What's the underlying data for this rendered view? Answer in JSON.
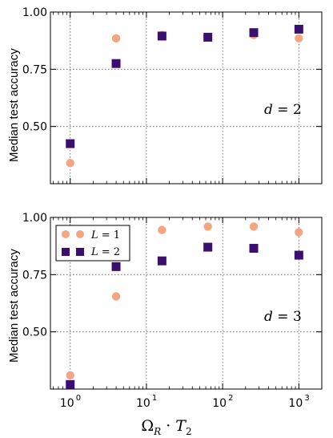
{
  "chart_data": [
    {
      "type": "scatter",
      "panel": "top",
      "annotation": "d = 2",
      "ylabel": "Median test accuracy",
      "xscale": "log",
      "xlim": [
        0.55,
        2000
      ],
      "ylim": [
        0.25,
        1.0
      ],
      "yticks": [
        "0.50",
        "0.75",
        "1.00"
      ],
      "xticks": [
        "10^0",
        "10^1",
        "10^2",
        "10^3"
      ],
      "grid": true,
      "x": [
        1,
        4,
        16,
        64,
        256,
        1000
      ],
      "series": [
        {
          "name": "L = 1",
          "marker": "circle",
          "color": "#f4a582",
          "values": [
            0.34,
            0.885,
            0.9,
            0.89,
            0.9,
            0.885
          ]
        },
        {
          "name": "L = 2",
          "marker": "square",
          "color": "#3b0f70",
          "values": [
            0.425,
            0.775,
            0.895,
            0.89,
            0.91,
            0.925
          ]
        }
      ]
    },
    {
      "type": "scatter",
      "panel": "bottom",
      "annotation": "d = 3",
      "ylabel": "Median test accuracy",
      "xlabel": "Ω_R · T_2",
      "xscale": "log",
      "xlim": [
        0.55,
        2000
      ],
      "ylim": [
        0.25,
        1.0
      ],
      "yticks": [
        "0.50",
        "0.75",
        "1.00"
      ],
      "xticks": [
        "10^0",
        "10^1",
        "10^2",
        "10^3"
      ],
      "grid": true,
      "legend": "top-left",
      "x": [
        1,
        4,
        16,
        64,
        256,
        1000
      ],
      "series": [
        {
          "name": "L = 1",
          "marker": "circle",
          "color": "#f4a582",
          "values": [
            0.31,
            0.655,
            0.945,
            0.96,
            0.96,
            0.935
          ]
        },
        {
          "name": "L = 2",
          "marker": "square",
          "color": "#3b0f70",
          "values": [
            0.27,
            0.785,
            0.81,
            0.87,
            0.865,
            0.835
          ]
        }
      ]
    }
  ],
  "labels": {
    "ylabel_top": "Median test accuracy",
    "ylabel_bottom": "Median test accuracy",
    "xlabel_main": "Ω",
    "xlabel_sub1": "R",
    "xlabel_dot": " · ",
    "xlabel_T": "T",
    "xlabel_sub2": "2",
    "ann_top_var": "d",
    "ann_top_eq": " = 2",
    "ann_bottom_var": "d",
    "ann_bottom_eq": " = 3",
    "legend_l1_var": "L",
    "legend_l1_eq": " = 1",
    "legend_l2_var": "L",
    "legend_l2_eq": " = 2"
  }
}
